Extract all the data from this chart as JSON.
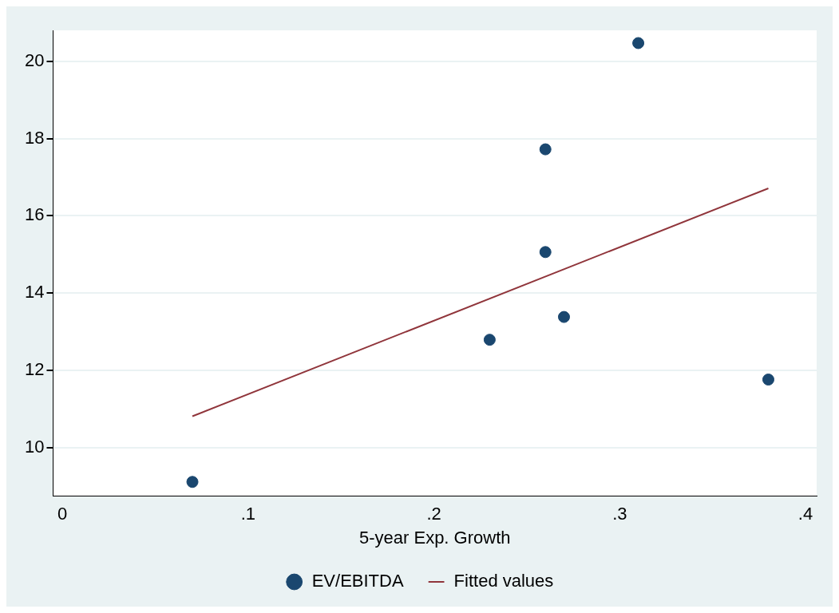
{
  "chart_data": {
    "type": "scatter",
    "xlabel": "5-year Exp. Growth",
    "xlim": [
      -0.005,
      0.406
    ],
    "ylim": [
      8.75,
      20.8
    ],
    "xticks": [
      0,
      {
        "value": 0.1,
        "label": ".1"
      },
      {
        "value": 0.2,
        "label": ".2"
      },
      {
        "value": 0.3,
        "label": ".3"
      },
      {
        "value": 0.4,
        "label": ".4"
      }
    ],
    "yticks": [
      10,
      12,
      14,
      16,
      18,
      20
    ],
    "grid": "y",
    "legend": "bottom",
    "series": [
      {
        "name": "EV/EBITDA",
        "marker": "circle",
        "color": "#1a476f",
        "x": [
          0.07,
          0.23,
          0.26,
          0.26,
          0.27,
          0.31,
          0.38
        ],
        "values": [
          9.11,
          12.79,
          17.72,
          15.06,
          13.38,
          20.47,
          11.76
        ]
      },
      {
        "name": "Fitted values",
        "type": "line",
        "color": "#90353b",
        "x": [
          0.07,
          0.38
        ],
        "values": [
          10.81,
          16.71
        ]
      }
    ]
  }
}
